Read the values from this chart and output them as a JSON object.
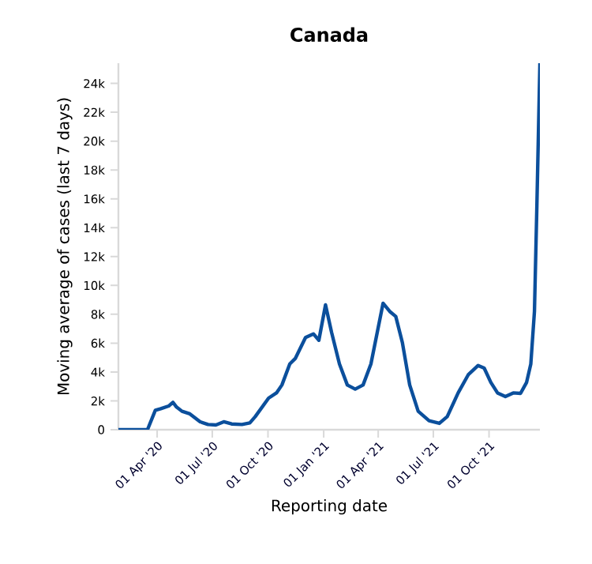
{
  "chart_data": {
    "type": "line",
    "title": "Canada",
    "xlabel": "Reporting date",
    "ylabel": "Moving average of cases (last 7 days)",
    "xlim": [
      "2020-01-28",
      "2021-12-24"
    ],
    "xticks": [
      {
        "value": "2020-04-01",
        "label": "01 Apr '20"
      },
      {
        "value": "2020-07-01",
        "label": "01 Jul '20"
      },
      {
        "value": "2020-10-01",
        "label": "01 Oct '20"
      },
      {
        "value": "2021-01-01",
        "label": "01 Jan '21"
      },
      {
        "value": "2021-04-01",
        "label": "01 Apr '21"
      },
      {
        "value": "2021-07-01",
        "label": "01 Jul '21"
      },
      {
        "value": "2021-10-01",
        "label": "01 Oct '21"
      }
    ],
    "ylim": [
      0,
      25400
    ],
    "yticks": [
      0,
      {
        "value": 2000,
        "label": "2k"
      },
      {
        "value": 4000,
        "label": "4k"
      },
      {
        "value": 6000,
        "label": "6k"
      },
      {
        "value": 8000,
        "label": "8k"
      },
      {
        "value": 10000,
        "label": "10k"
      },
      {
        "value": 12000,
        "label": "12k"
      },
      {
        "value": 14000,
        "label": "14k"
      },
      {
        "value": 16000,
        "label": "16k"
      },
      {
        "value": 18000,
        "label": "18k"
      },
      {
        "value": 20000,
        "label": "20k"
      },
      {
        "value": 22000,
        "label": "22k"
      },
      {
        "value": 24000,
        "label": "24k"
      }
    ],
    "x": [
      "2020-01-28",
      "2020-03-16",
      "2020-03-29",
      "2020-04-07",
      "2020-04-20",
      "2020-04-27",
      "2020-05-03",
      "2020-05-12",
      "2020-05-25",
      "2020-06-11",
      "2020-06-24",
      "2020-07-07",
      "2020-07-20",
      "2020-08-02",
      "2020-08-19",
      "2020-09-01",
      "2020-09-10",
      "2020-10-02",
      "2020-10-15",
      "2020-10-24",
      "2020-11-06",
      "2020-11-15",
      "2020-12-02",
      "2020-12-15",
      "2020-12-24",
      "2021-01-04",
      "2021-01-14",
      "2021-01-27",
      "2021-02-09",
      "2021-02-22",
      "2021-03-07",
      "2021-03-20",
      "2021-04-09",
      "2021-04-20",
      "2021-04-30",
      "2021-05-11",
      "2021-05-23",
      "2021-06-06",
      "2021-06-24",
      "2021-07-11",
      "2021-07-24",
      "2021-08-11",
      "2021-08-28",
      "2021-09-13",
      "2021-09-23",
      "2021-10-04",
      "2021-10-15",
      "2021-10-28",
      "2021-11-10",
      "2021-11-22",
      "2021-12-02",
      "2021-12-09",
      "2021-12-15",
      "2021-12-19",
      "2021-12-24"
    ],
    "series": [
      {
        "color": "#0b4f9c",
        "values": [
          0,
          0,
          1350,
          1460,
          1640,
          1900,
          1570,
          1280,
          1100,
          550,
          360,
          330,
          550,
          400,
          360,
          470,
          910,
          2190,
          2550,
          3100,
          4560,
          4930,
          6390,
          6640,
          6200,
          8650,
          6750,
          4560,
          3100,
          2810,
          3100,
          4560,
          8760,
          8200,
          7850,
          6020,
          3100,
          1280,
          620,
          440,
          910,
          2550,
          3830,
          4450,
          4270,
          3280,
          2550,
          2300,
          2550,
          2520,
          3280,
          4560,
          8200,
          15500,
          25400
        ]
      }
    ]
  }
}
